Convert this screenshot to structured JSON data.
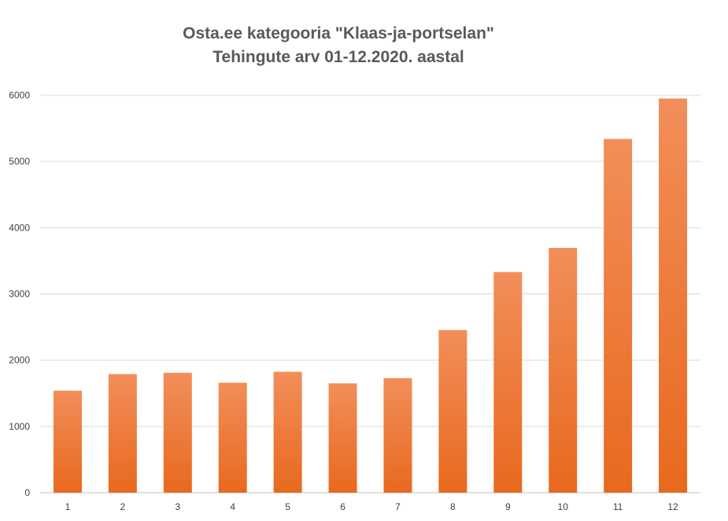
{
  "chart_data": {
    "type": "bar",
    "title": "Osta.ee kategooria \"Klaas-ja-portselan\"",
    "subtitle": "Tehingute arv 01-12.2020. aastal",
    "xlabel": "",
    "ylabel": "",
    "categories": [
      "1",
      "2",
      "3",
      "4",
      "5",
      "6",
      "7",
      "8",
      "9",
      "10",
      "11",
      "12"
    ],
    "values": [
      1540,
      1790,
      1810,
      1660,
      1825,
      1650,
      1730,
      2455,
      3330,
      3695,
      5340,
      5950
    ],
    "ylim": [
      0,
      6000
    ],
    "yticks": [
      "0",
      "1000",
      "2000",
      "3000",
      "4000",
      "5000",
      "6000"
    ],
    "ytick_values": [
      0,
      1000,
      2000,
      3000,
      4000,
      5000,
      6000
    ],
    "grid": true,
    "legend": "none",
    "colors": {
      "bar_top": "#F28E5A",
      "bar_bottom": "#E8691E",
      "grid": "#D9D9D9",
      "axis_text": "#404040",
      "title": "#595959"
    }
  }
}
